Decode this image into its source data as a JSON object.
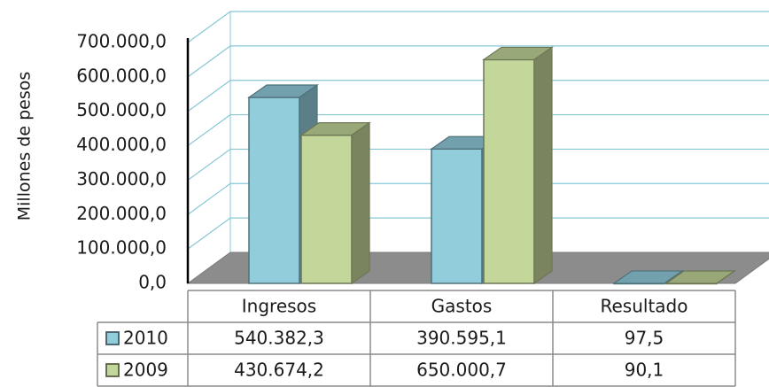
{
  "chart_data": {
    "type": "bar",
    "ylabel": "Millones de pesos",
    "categories": [
      "Ingresos",
      "Gastos",
      "Resultado"
    ],
    "y_ticks": [
      "0,0",
      "100.000,0",
      "200.000,0",
      "300.000,0",
      "400.000,0",
      "500.000,0",
      "600.000,0",
      "700.000,0"
    ],
    "ylim": [
      0,
      700000
    ],
    "grid": true,
    "legend": "data-table",
    "series": [
      {
        "name": "2010",
        "values": [
          540382.3,
          390595.1,
          97.5
        ],
        "labels": [
          "540.382,3",
          "390.595,1",
          "97,5"
        ],
        "color": "#92CDDC"
      },
      {
        "name": "2009",
        "values": [
          430674.2,
          650000.7,
          90.1
        ],
        "labels": [
          "430.674,2",
          "650.000,7",
          "90,1"
        ],
        "color": "#C4D79B"
      }
    ]
  }
}
